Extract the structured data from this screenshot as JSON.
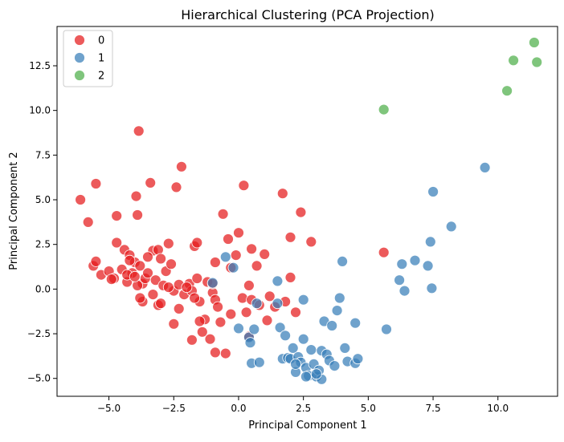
{
  "chart_data": {
    "type": "scatter",
    "title": "Hierarchical Clustering (PCA Projection)",
    "xlabel": "Principal Component 1",
    "ylabel": "Principal Component 2",
    "xlim": [
      -7.0,
      12.3
    ],
    "ylim": [
      -6.0,
      14.7
    ],
    "xticks": [
      -5.0,
      -2.5,
      0.0,
      2.5,
      5.0,
      7.5,
      10.0
    ],
    "yticks": [
      -5.0,
      -2.5,
      0.0,
      2.5,
      5.0,
      7.5,
      10.0,
      12.5
    ],
    "xtick_labels": [
      "−5.0",
      "−2.5",
      "0.0",
      "2.5",
      "5.0",
      "7.5",
      "10.0"
    ],
    "ytick_labels": [
      "−5.0",
      "−2.5",
      "0.0",
      "2.5",
      "5.0",
      "7.5",
      "10.0",
      "12.5"
    ],
    "grid": false,
    "legend_position": "top-left",
    "series": [
      {
        "name": "0",
        "color": "#e41a1c",
        "points": [
          [
            -6.1,
            5.0
          ],
          [
            -5.8,
            3.75
          ],
          [
            -5.5,
            5.9
          ],
          [
            -5.3,
            0.8
          ],
          [
            -5.6,
            1.3
          ],
          [
            -5.5,
            1.55
          ],
          [
            -5.0,
            1.0
          ],
          [
            -4.8,
            0.6
          ],
          [
            -4.7,
            2.6
          ],
          [
            -4.7,
            4.1
          ],
          [
            -4.5,
            1.1
          ],
          [
            -4.4,
            2.2
          ],
          [
            -4.3,
            0.4
          ],
          [
            -4.2,
            1.9
          ],
          [
            -4.1,
            0.9
          ],
          [
            -4.0,
            1.5
          ],
          [
            -3.95,
            5.2
          ],
          [
            -3.9,
            4.15
          ],
          [
            -3.85,
            8.85
          ],
          [
            -3.8,
            1.3
          ],
          [
            -3.7,
            -0.7
          ],
          [
            -3.7,
            0.3
          ],
          [
            -3.6,
            0.6
          ],
          [
            -3.5,
            0.9
          ],
          [
            -3.4,
            5.95
          ],
          [
            -3.3,
            2.15
          ],
          [
            -3.2,
            0.5
          ],
          [
            -3.1,
            -0.9
          ],
          [
            -3.1,
            2.2
          ],
          [
            -3.0,
            1.7
          ],
          [
            -2.9,
            0.2
          ],
          [
            -2.8,
            1.0
          ],
          [
            -2.7,
            2.55
          ],
          [
            -2.6,
            1.4
          ],
          [
            -2.5,
            -0.1
          ],
          [
            -2.5,
            -1.95
          ],
          [
            -2.4,
            5.7
          ],
          [
            -2.3,
            0.25
          ],
          [
            -2.2,
            6.85
          ],
          [
            -2.1,
            -0.3
          ],
          [
            -1.9,
            0.3
          ],
          [
            -1.8,
            -0.1
          ],
          [
            -1.7,
            2.4
          ],
          [
            -1.6,
            2.6
          ],
          [
            -1.6,
            0.6
          ],
          [
            -1.5,
            -0.7
          ],
          [
            -1.4,
            -2.4
          ],
          [
            -1.3,
            -1.7
          ],
          [
            -1.2,
            0.4
          ],
          [
            -1.0,
            -0.2
          ],
          [
            -0.9,
            -0.6
          ],
          [
            -0.9,
            1.5
          ],
          [
            -0.8,
            -1.0
          ],
          [
            -0.7,
            -1.85
          ],
          [
            -0.6,
            4.2
          ],
          [
            -0.5,
            -3.6
          ],
          [
            -0.4,
            2.8
          ],
          [
            -0.3,
            1.2
          ],
          [
            -0.1,
            1.9
          ],
          [
            0.0,
            3.15
          ],
          [
            0.15,
            -0.5
          ],
          [
            0.2,
            5.8
          ],
          [
            0.3,
            -1.3
          ],
          [
            0.4,
            0.2
          ],
          [
            0.5,
            -0.6
          ],
          [
            0.5,
            2.25
          ],
          [
            0.7,
            1.3
          ],
          [
            0.8,
            -0.9
          ],
          [
            1.0,
            1.95
          ],
          [
            1.1,
            -1.75
          ],
          [
            1.2,
            -0.4
          ],
          [
            1.4,
            -1.0
          ],
          [
            1.7,
            5.35
          ],
          [
            1.8,
            -0.7
          ],
          [
            2.0,
            0.65
          ],
          [
            2.0,
            2.9
          ],
          [
            2.2,
            -1.3
          ],
          [
            2.4,
            4.3
          ],
          [
            2.8,
            2.65
          ],
          [
            5.6,
            2.05
          ],
          [
            -4.9,
            0.55
          ],
          [
            -4.3,
            0.8
          ],
          [
            -3.9,
            0.2
          ],
          [
            -3.5,
            1.8
          ],
          [
            -3.0,
            -0.8
          ],
          [
            -2.7,
            0.1
          ],
          [
            -2.0,
            0.1
          ],
          [
            -1.8,
            -2.85
          ],
          [
            -1.5,
            -1.8
          ],
          [
            -1.1,
            -2.8
          ],
          [
            -0.9,
            -3.55
          ],
          [
            -0.3,
            -1.4
          ],
          [
            0.4,
            -2.65
          ],
          [
            -4.2,
            1.6
          ],
          [
            -3.8,
            -0.5
          ],
          [
            -4.0,
            0.7
          ],
          [
            -3.3,
            -0.3
          ],
          [
            -2.3,
            -1.1
          ],
          [
            -1.7,
            -0.5
          ],
          [
            -1.0,
            0.3
          ]
        ]
      },
      {
        "name": "1",
        "color": "#377eb8",
        "points": [
          [
            -1.0,
            0.35
          ],
          [
            -0.5,
            1.8
          ],
          [
            -0.2,
            1.2
          ],
          [
            0.0,
            -2.2
          ],
          [
            0.4,
            -2.7
          ],
          [
            0.45,
            -3.0
          ],
          [
            0.5,
            -4.15
          ],
          [
            0.6,
            -2.25
          ],
          [
            0.7,
            -0.8
          ],
          [
            0.8,
            -4.1
          ],
          [
            1.5,
            0.45
          ],
          [
            1.5,
            -0.8
          ],
          [
            1.6,
            -2.15
          ],
          [
            1.7,
            -3.9
          ],
          [
            1.8,
            -2.6
          ],
          [
            1.9,
            -3.85
          ],
          [
            2.0,
            -3.9
          ],
          [
            2.1,
            -3.3
          ],
          [
            2.2,
            -4.65
          ],
          [
            2.3,
            -3.8
          ],
          [
            2.4,
            -4.1
          ],
          [
            2.5,
            -2.8
          ],
          [
            2.5,
            -0.6
          ],
          [
            2.6,
            -4.4
          ],
          [
            2.7,
            -4.85
          ],
          [
            2.8,
            -3.4
          ],
          [
            2.9,
            -4.2
          ],
          [
            3.0,
            -4.9
          ],
          [
            3.1,
            -4.55
          ],
          [
            3.2,
            -3.45
          ],
          [
            3.3,
            -1.8
          ],
          [
            3.4,
            -3.65
          ],
          [
            3.5,
            -4.0
          ],
          [
            3.6,
            -2.05
          ],
          [
            3.7,
            -4.3
          ],
          [
            3.8,
            -1.2
          ],
          [
            3.9,
            -0.5
          ],
          [
            4.0,
            1.55
          ],
          [
            4.1,
            -3.3
          ],
          [
            4.2,
            -4.05
          ],
          [
            4.5,
            -1.9
          ],
          [
            4.5,
            -4.15
          ],
          [
            4.6,
            -3.9
          ],
          [
            5.7,
            -2.25
          ],
          [
            6.2,
            0.5
          ],
          [
            6.3,
            1.4
          ],
          [
            6.4,
            -0.1
          ],
          [
            6.8,
            1.6
          ],
          [
            7.3,
            1.3
          ],
          [
            7.4,
            2.65
          ],
          [
            7.45,
            0.05
          ],
          [
            7.5,
            5.45
          ],
          [
            8.2,
            3.5
          ],
          [
            9.5,
            6.8
          ],
          [
            2.6,
            -4.9
          ],
          [
            3.2,
            -5.05
          ],
          [
            2.2,
            -4.2
          ],
          [
            3.0,
            -4.75
          ]
        ]
      },
      {
        "name": "2",
        "color": "#4daf4a",
        "points": [
          [
            5.6,
            10.05
          ],
          [
            10.35,
            11.1
          ],
          [
            10.6,
            12.8
          ],
          [
            11.4,
            13.8
          ],
          [
            11.5,
            12.7
          ]
        ]
      }
    ]
  }
}
